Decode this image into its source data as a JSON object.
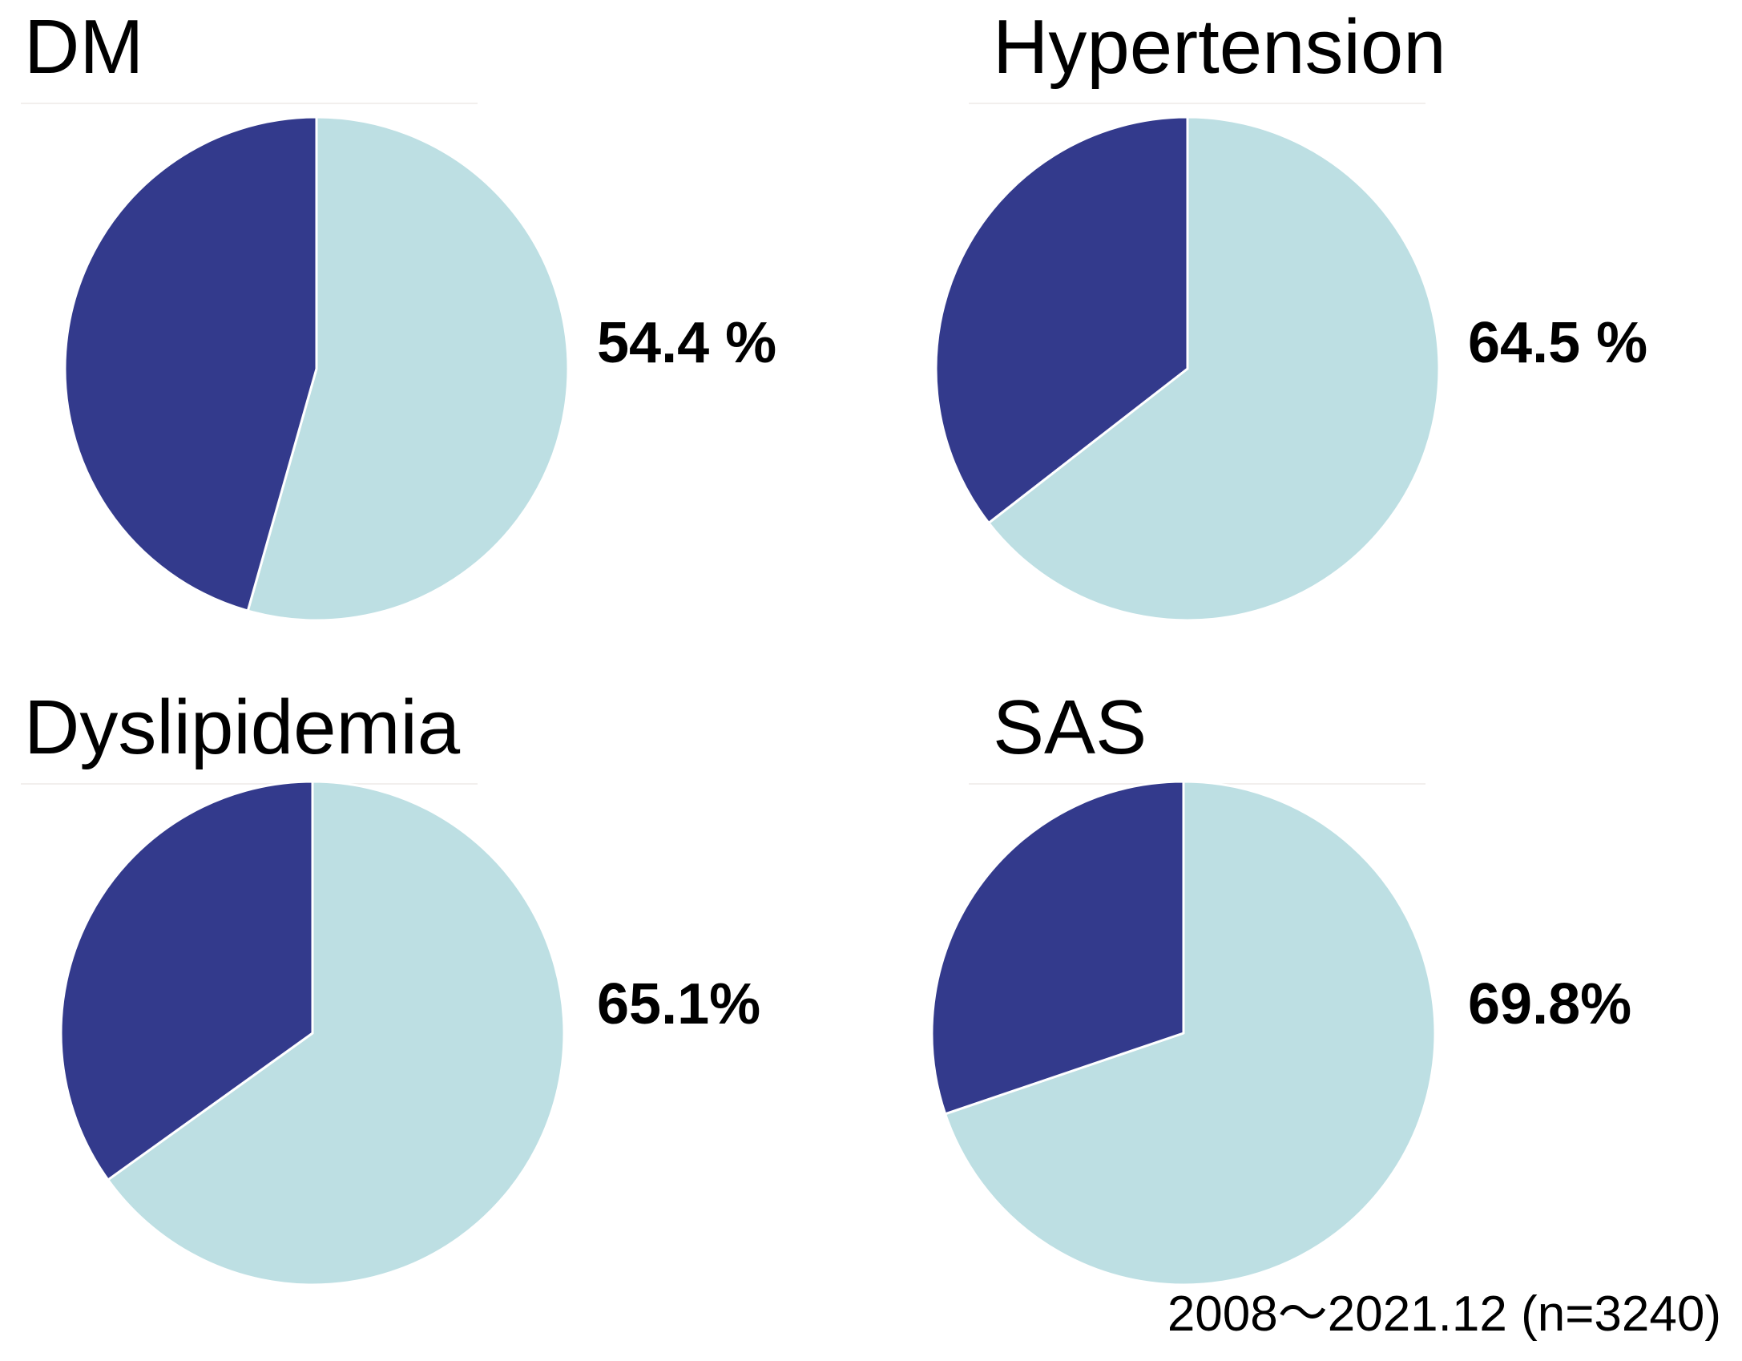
{
  "chart_data": [
    {
      "type": "pie",
      "title": "DM",
      "label": "54.4 %",
      "slices": [
        {
          "pct": 54.4,
          "color": "#bddfe3"
        },
        {
          "pct": 45.6,
          "color": "#333a8c"
        }
      ],
      "start_angle_deg": 0,
      "direction": "clockwise",
      "legend": false
    },
    {
      "type": "pie",
      "title": "Hypertension",
      "label": "64.5 %",
      "slices": [
        {
          "pct": 64.5,
          "color": "#bddfe3"
        },
        {
          "pct": 35.5,
          "color": "#333a8c"
        }
      ],
      "start_angle_deg": 0,
      "direction": "clockwise",
      "legend": false
    },
    {
      "type": "pie",
      "title": "Dyslipidemia",
      "label": "65.1%",
      "slices": [
        {
          "pct": 65.1,
          "color": "#bddfe3"
        },
        {
          "pct": 34.9,
          "color": "#333a8c"
        }
      ],
      "start_angle_deg": 0,
      "direction": "clockwise",
      "legend": false
    },
    {
      "type": "pie",
      "title": "SAS",
      "label": "69.8%",
      "slices": [
        {
          "pct": 69.8,
          "color": "#bddfe3"
        },
        {
          "pct": 30.2,
          "color": "#333a8c"
        }
      ],
      "start_angle_deg": 0,
      "direction": "clockwise",
      "legend": false
    }
  ],
  "colors": {
    "highlighted_slice": "#bddfe3",
    "remainder_slice": "#333a8c",
    "slice_separator": "#ffffff",
    "text": "#000000"
  },
  "footnote": "2008～2021.12 (n=3240)"
}
